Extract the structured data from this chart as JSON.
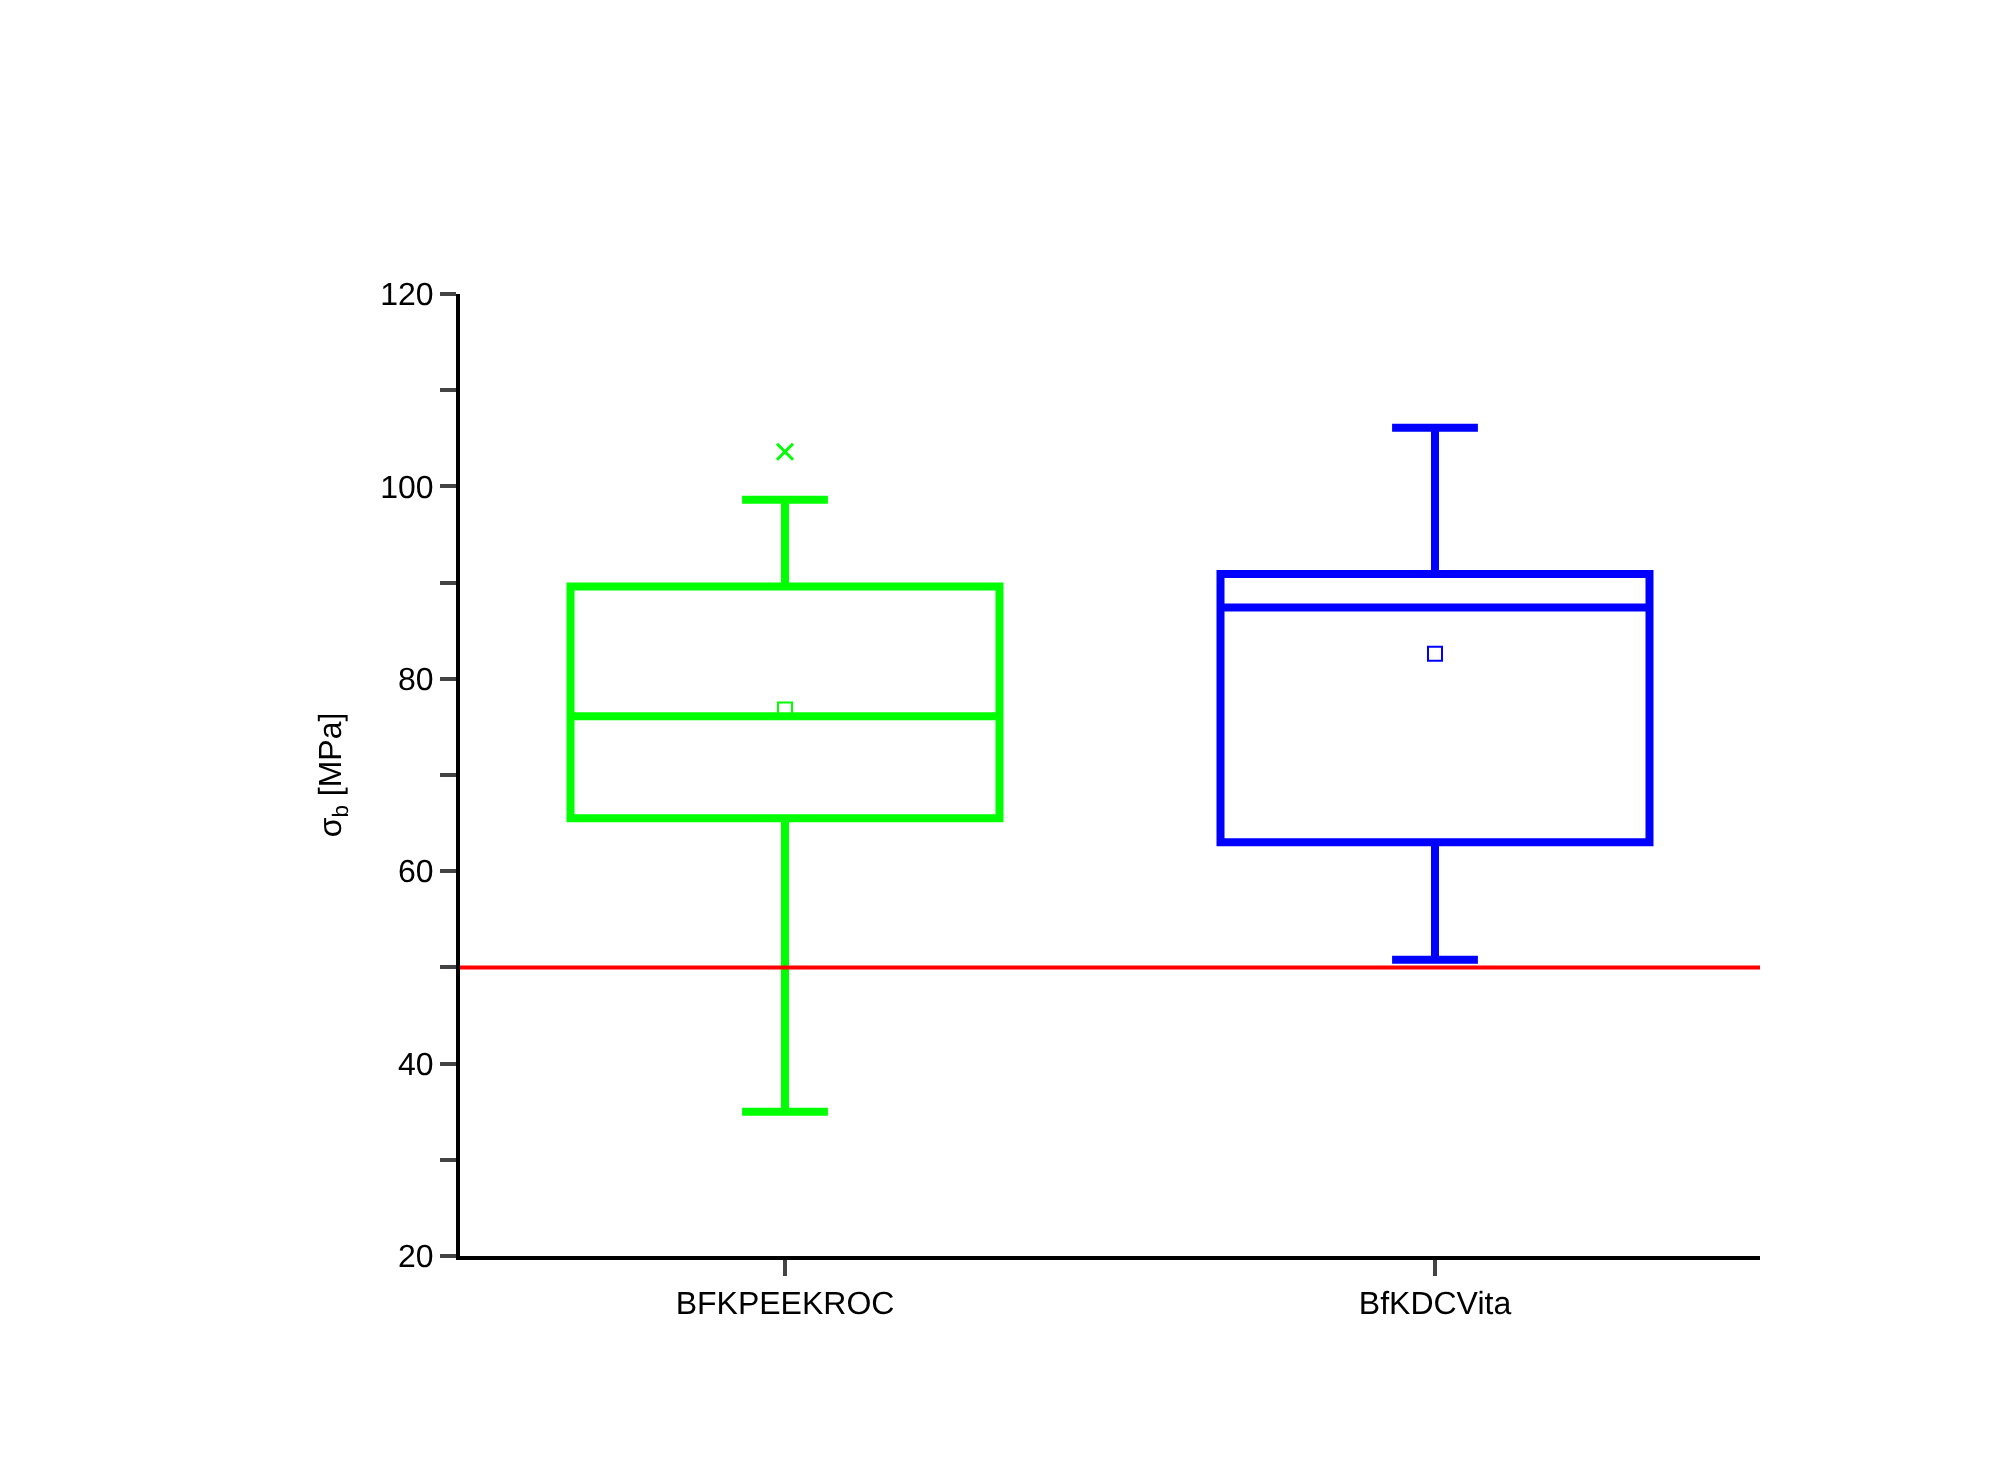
{
  "chart_data": {
    "type": "box",
    "ylabel": "σ$_{b}$ [MPa]",
    "categories": [
      "BFKPEEKROC",
      "BfKDCVita"
    ],
    "series": [
      {
        "color": "#00ff00",
        "boxes": [
          {
            "low": 35,
            "q1": 65.5,
            "median": 76.1,
            "q3": 89.6,
            "high": 98.6,
            "mean": 76.8,
            "outliers": [
              103.6
            ]
          },
          null
        ]
      },
      {
        "color": "#0000ff",
        "boxes": [
          null,
          {
            "low": 50.8,
            "q1": 63,
            "median": 87.4,
            "q3": 90.9,
            "high": 106.1,
            "mean": 82.6
          }
        ]
      }
    ],
    "ylim": [
      20,
      120
    ],
    "yticks": [
      20,
      {
        "value": 30,
        "label": null
      },
      40,
      {
        "value": 50,
        "label": null
      },
      60,
      {
        "value": 70,
        "label": null
      },
      80,
      {
        "value": 90,
        "label": null
      },
      100,
      {
        "value": 110,
        "label": null
      },
      120
    ],
    "ref_lines": [
      {
        "axis": "y",
        "value": 50,
        "color": "#ff0000"
      }
    ]
  }
}
